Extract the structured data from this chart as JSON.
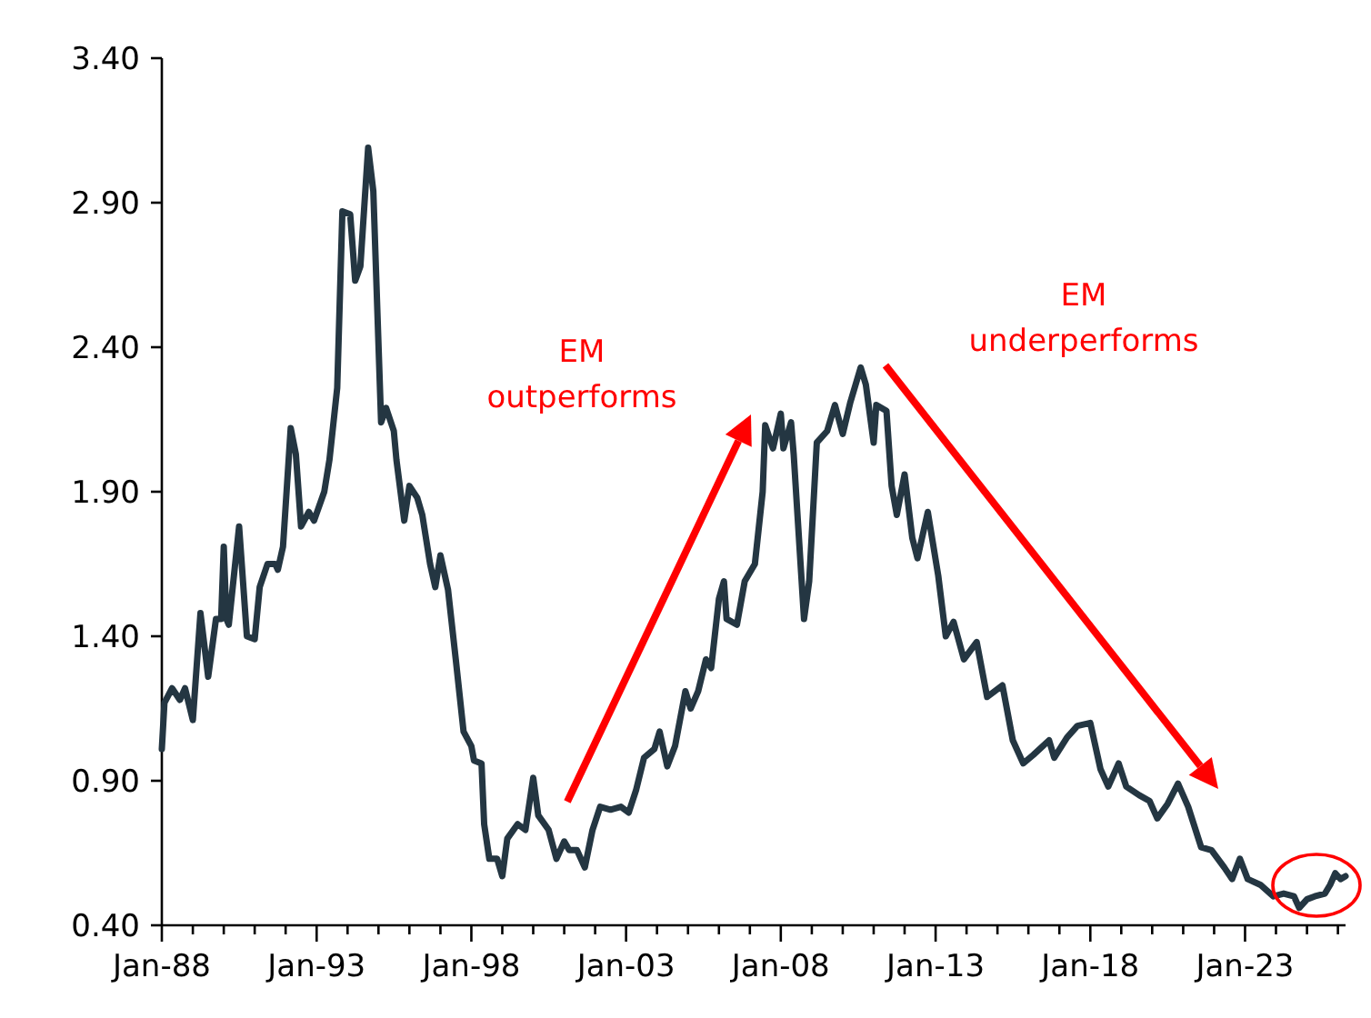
{
  "chart_data": {
    "type": "line",
    "x": [
      "1988-01",
      "1988-02",
      "1988-05",
      "1988-08",
      "1988-10",
      "1989-01",
      "1989-04",
      "1989-07",
      "1989-10",
      "1989-12",
      "1990-01",
      "1990-02",
      "1990-03",
      "1990-07",
      "1990-10",
      "1991-01",
      "1991-03",
      "1991-06",
      "1991-09",
      "1991-10",
      "1991-12",
      "1992-03",
      "1992-05",
      "1992-07",
      "1992-10",
      "1992-12",
      "1993-04",
      "1993-06",
      "1993-09",
      "1993-11",
      "1994-02",
      "1994-04",
      "1994-06",
      "1994-09",
      "1994-11",
      "1995-02",
      "1995-04",
      "1995-07",
      "1995-08",
      "1995-11",
      "1996-01",
      "1996-04",
      "1996-06",
      "1996-09",
      "1996-11",
      "1997-01",
      "1997-04",
      "1997-07",
      "1997-10",
      "1998-01",
      "1998-02",
      "1998-05",
      "1998-06",
      "1998-08",
      "1998-11",
      "1999-01",
      "1999-03",
      "1999-07",
      "1999-10",
      "2000-01",
      "2000-03",
      "2000-07",
      "2000-10",
      "2001-01",
      "2001-03",
      "2001-06",
      "2001-09",
      "2001-12",
      "2002-03",
      "2002-07",
      "2002-11",
      "2003-02",
      "2003-05",
      "2003-08",
      "2003-12",
      "2004-02",
      "2004-05",
      "2004-08",
      "2004-12",
      "2005-02",
      "2005-05",
      "2005-08",
      "2005-10",
      "2006-01",
      "2006-03",
      "2006-04",
      "2006-08",
      "2006-11",
      "2007-03",
      "2007-06",
      "2007-07",
      "2007-10",
      "2008-01",
      "2008-02",
      "2008-05",
      "2008-06",
      "2008-10",
      "2008-12",
      "2009-03",
      "2009-07",
      "2009-10",
      "2010-01",
      "2010-04",
      "2010-08",
      "2010-10",
      "2011-01",
      "2011-02",
      "2011-06",
      "2011-08",
      "2011-10",
      "2012-01",
      "2012-04",
      "2012-06",
      "2012-10",
      "2013-02",
      "2013-05",
      "2013-08",
      "2013-12",
      "2014-05",
      "2014-09",
      "2015-03",
      "2015-07",
      "2015-11",
      "2016-03",
      "2016-09",
      "2016-11",
      "2017-04",
      "2017-08",
      "2018-01",
      "2018-05",
      "2018-08",
      "2018-12",
      "2019-03",
      "2019-08",
      "2019-12",
      "2020-03",
      "2020-07",
      "2020-11",
      "2021-03",
      "2021-08",
      "2021-12",
      "2022-05",
      "2022-08",
      "2022-11",
      "2023-02",
      "2023-07",
      "2023-12",
      "2024-04",
      "2024-08",
      "2024-10",
      "2025-01",
      "2025-04",
      "2025-08",
      "2025-10",
      "2025-12",
      "2026-02",
      "2026-04"
    ],
    "series": [
      {
        "color": "#243642",
        "values": [
          1.01,
          1.17,
          1.22,
          1.18,
          1.22,
          1.11,
          1.48,
          1.26,
          1.46,
          1.46,
          1.71,
          1.46,
          1.44,
          1.78,
          1.4,
          1.39,
          1.57,
          1.65,
          1.65,
          1.63,
          1.71,
          2.12,
          2.03,
          1.78,
          1.83,
          1.8,
          1.9,
          2.01,
          2.26,
          2.87,
          2.86,
          2.63,
          2.68,
          3.09,
          2.94,
          2.14,
          2.19,
          2.11,
          2.01,
          1.8,
          1.92,
          1.88,
          1.82,
          1.65,
          1.57,
          1.68,
          1.56,
          1.32,
          1.07,
          1.02,
          0.97,
          0.96,
          0.75,
          0.63,
          0.63,
          0.57,
          0.7,
          0.75,
          0.73,
          0.91,
          0.78,
          0.73,
          0.63,
          0.69,
          0.66,
          0.66,
          0.6,
          0.73,
          0.81,
          0.8,
          0.81,
          0.79,
          0.87,
          0.98,
          1.01,
          1.07,
          0.95,
          1.02,
          1.21,
          1.15,
          1.21,
          1.32,
          1.29,
          1.53,
          1.59,
          1.46,
          1.44,
          1.59,
          1.65,
          1.9,
          2.13,
          2.05,
          2.17,
          2.05,
          2.14,
          2.03,
          1.46,
          1.59,
          2.07,
          2.11,
          2.2,
          2.1,
          2.21,
          2.33,
          2.27,
          2.07,
          2.2,
          2.18,
          1.92,
          1.82,
          1.96,
          1.74,
          1.67,
          1.83,
          1.61,
          1.4,
          1.45,
          1.32,
          1.38,
          1.19,
          1.23,
          1.04,
          0.96,
          0.99,
          1.04,
          0.98,
          1.05,
          1.09,
          1.1,
          0.94,
          0.88,
          0.96,
          0.88,
          0.85,
          0.83,
          0.77,
          0.82,
          0.89,
          0.81,
          0.67,
          0.66,
          0.6,
          0.56,
          0.63,
          0.56,
          0.54,
          0.5,
          0.51,
          0.5,
          0.46,
          0.49,
          0.5,
          0.51,
          0.54,
          0.58,
          0.56,
          0.57
        ]
      }
    ],
    "xlim": [
      "1988-01",
      "2026-04"
    ],
    "xticks": [
      {
        "value": "1988-01",
        "label": "Jan-88"
      },
      {
        "value": "1989-01",
        "label": null
      },
      {
        "value": "1990-01",
        "label": null
      },
      {
        "value": "1991-01",
        "label": null
      },
      {
        "value": "1992-01",
        "label": null
      },
      {
        "value": "1993-01",
        "label": "Jan-93"
      },
      {
        "value": "1994-01",
        "label": null
      },
      {
        "value": "1995-01",
        "label": null
      },
      {
        "value": "1996-01",
        "label": null
      },
      {
        "value": "1997-01",
        "label": null
      },
      {
        "value": "1998-01",
        "label": "Jan-98"
      },
      {
        "value": "1999-01",
        "label": null
      },
      {
        "value": "2000-01",
        "label": null
      },
      {
        "value": "2001-01",
        "label": null
      },
      {
        "value": "2002-01",
        "label": null
      },
      {
        "value": "2003-01",
        "label": "Jan-03"
      },
      {
        "value": "2004-01",
        "label": null
      },
      {
        "value": "2005-01",
        "label": null
      },
      {
        "value": "2006-01",
        "label": null
      },
      {
        "value": "2007-01",
        "label": null
      },
      {
        "value": "2008-01",
        "label": "Jan-08"
      },
      {
        "value": "2009-01",
        "label": null
      },
      {
        "value": "2010-01",
        "label": null
      },
      {
        "value": "2011-01",
        "label": null
      },
      {
        "value": "2012-01",
        "label": null
      },
      {
        "value": "2013-01",
        "label": "Jan-13"
      },
      {
        "value": "2014-01",
        "label": null
      },
      {
        "value": "2015-01",
        "label": null
      },
      {
        "value": "2016-01",
        "label": null
      },
      {
        "value": "2017-01",
        "label": null
      },
      {
        "value": "2018-01",
        "label": "Jan-18"
      },
      {
        "value": "2019-01",
        "label": null
      },
      {
        "value": "2020-01",
        "label": null
      },
      {
        "value": "2021-01",
        "label": null
      },
      {
        "value": "2022-01",
        "label": null
      },
      {
        "value": "2023-01",
        "label": "Jan-23"
      },
      {
        "value": "2024-01",
        "label": null
      },
      {
        "value": "2025-01",
        "label": null
      },
      {
        "value": "2026-01",
        "label": null
      }
    ],
    "ylim": [
      0.4,
      3.4
    ],
    "yticks": [
      {
        "value": 0.4,
        "label": "0.40"
      },
      {
        "value": 0.9,
        "label": "0.90"
      },
      {
        "value": 1.4,
        "label": "1.40"
      },
      {
        "value": 1.9,
        "label": "1.90"
      },
      {
        "value": 2.4,
        "label": "2.40"
      },
      {
        "value": 2.9,
        "label": "2.90"
      },
      {
        "value": 3.4,
        "label": "3.40"
      }
    ],
    "annotations": [
      "EM outperforms",
      "EM underperforms"
    ],
    "marker": "none",
    "line_style": "solid"
  }
}
